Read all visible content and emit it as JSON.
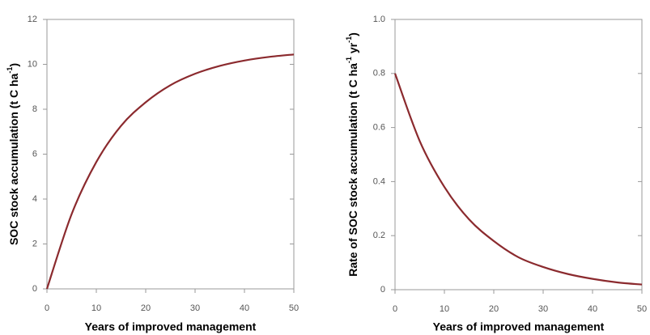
{
  "chart_data": [
    {
      "type": "line",
      "xlabel": "Years of improved management",
      "ylabel": [
        "SOC stock accumulation (t C ha",
        "-1",
        ")"
      ],
      "x": [
        0,
        5,
        10,
        15,
        20,
        25,
        30,
        35,
        40,
        45,
        50
      ],
      "series": [
        {
          "color": "#8b2a2e",
          "values": [
            0,
            3.33,
            5.65,
            7.26,
            8.31,
            9.07,
            9.58,
            9.93,
            10.17,
            10.33,
            10.44
          ]
        }
      ],
      "xlim": [
        0,
        50
      ],
      "xticks": [
        0,
        10,
        20,
        30,
        40,
        50
      ],
      "ylim": [
        0,
        12
      ],
      "yticks": [
        0,
        2,
        4,
        6,
        8,
        10,
        12
      ],
      "grid": false
    },
    {
      "type": "line",
      "xlabel": "Years of improved management",
      "ylabel": [
        "Rate of SOC stock accumulation (t C ha",
        "-1",
        " yr",
        "-1",
        ")"
      ],
      "x": [
        0,
        5,
        10,
        15,
        20,
        25,
        30,
        35,
        40,
        45,
        50
      ],
      "series": [
        {
          "color": "#8b2a2e",
          "values": [
            0.8,
            0.55,
            0.38,
            0.26,
            0.18,
            0.12,
            0.084,
            0.058,
            0.04,
            0.027,
            0.019
          ]
        }
      ],
      "xlim": [
        0,
        50
      ],
      "xticks": [
        0,
        10,
        20,
        30,
        40,
        50
      ],
      "ylim": [
        0,
        1
      ],
      "yticks": [
        0,
        0.2,
        0.4,
        0.6,
        0.8,
        {
          "value": 1,
          "label": "1.0"
        }
      ],
      "grid": false
    }
  ]
}
